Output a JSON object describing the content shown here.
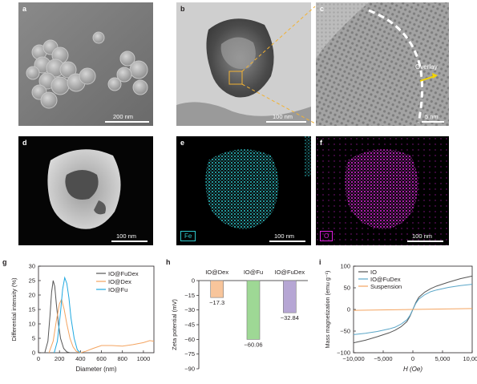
{
  "figure": {
    "panels": {
      "a": {
        "label": "a",
        "scalebar": "200 nm"
      },
      "b": {
        "label": "b",
        "scalebar": "100 nm"
      },
      "c": {
        "label": "c",
        "scalebar": "5 nm",
        "annotation": "Overlay"
      },
      "d": {
        "label": "d",
        "scalebar": "100 nm"
      },
      "e": {
        "label": "e",
        "scalebar": "100 nm",
        "element": "Fe"
      },
      "f": {
        "label": "f",
        "scalebar": "100 nm",
        "element": "O"
      },
      "g": {
        "label": "g"
      },
      "h": {
        "label": "h"
      },
      "i": {
        "label": "i"
      }
    },
    "colors": {
      "fe_map": "#29c4c8",
      "o_map": "#e020e0",
      "fe_box": "#2ec7cc",
      "o_box": "#e01ee0",
      "dash_yellow": "#f2b233"
    }
  },
  "chart_data": [
    {
      "id": "g",
      "type": "line",
      "xlabel": "Diameter (nm)",
      "ylabel": "Differential intensity (%)",
      "xlim": [
        0,
        1100
      ],
      "ylim": [
        0,
        30
      ],
      "xticks": [
        0,
        200,
        400,
        600,
        800,
        1000
      ],
      "yticks": [
        0,
        5,
        10,
        15,
        20,
        25,
        30
      ],
      "legend_position": "top-right",
      "series": [
        {
          "name": "IO@FuDex",
          "color": "#555555",
          "points": [
            [
              60,
              0
            ],
            [
              90,
              4
            ],
            [
              110,
              13
            ],
            [
              125,
              21
            ],
            [
              140,
              25
            ],
            [
              155,
              23
            ],
            [
              170,
              17
            ],
            [
              190,
              10
            ],
            [
              210,
              5
            ],
            [
              240,
              1.5
            ],
            [
              270,
              0.3
            ],
            [
              300,
              0
            ]
          ]
        },
        {
          "name": "IO@Dex",
          "color": "#f4a460",
          "points": [
            [
              100,
              0
            ],
            [
              140,
              4
            ],
            [
              170,
              11
            ],
            [
              200,
              17
            ],
            [
              220,
              18.5
            ],
            [
              245,
              15
            ],
            [
              270,
              10
            ],
            [
              300,
              5
            ],
            [
              330,
              2
            ],
            [
              360,
              0.5
            ],
            [
              400,
              0
            ],
            [
              450,
              0.5
            ],
            [
              520,
              1.5
            ],
            [
              600,
              2.5
            ],
            [
              700,
              2.5
            ],
            [
              800,
              2.3
            ],
            [
              900,
              2.8
            ],
            [
              1000,
              3.5
            ],
            [
              1060,
              4.2
            ],
            [
              1100,
              4
            ]
          ]
        },
        {
          "name": "IO@Fu",
          "color": "#1fa8e0",
          "points": [
            [
              150,
              0
            ],
            [
              180,
              4
            ],
            [
              210,
              14
            ],
            [
              230,
              22
            ],
            [
              250,
              26
            ],
            [
              270,
              24
            ],
            [
              290,
              19
            ],
            [
              310,
              12
            ],
            [
              340,
              5
            ],
            [
              370,
              1
            ],
            [
              400,
              0
            ]
          ]
        }
      ]
    },
    {
      "id": "h",
      "type": "bar",
      "ylabel": "Zeta potential (mV)",
      "ylim": [
        -90,
        0
      ],
      "yticks": [
        0,
        -15,
        -30,
        -45,
        -60,
        -75,
        -90
      ],
      "categories": [
        "IO@Dex",
        "IO@Fu",
        "IO@FuDex"
      ],
      "values": [
        -17.3,
        -60.06,
        -32.84
      ],
      "value_labels": [
        "−17.3",
        "−60.06",
        "−32.84"
      ],
      "colors": [
        "#f8c59b",
        "#9ed895",
        "#b6a6d4"
      ]
    },
    {
      "id": "i",
      "type": "line",
      "xlabel": "H (Oe)",
      "ylabel": "Mass magnetization (emu g⁻¹)",
      "xlim": [
        -10000,
        10000
      ],
      "ylim": [
        -100,
        100
      ],
      "xticks": [
        -10000,
        -5000,
        0,
        5000,
        10000
      ],
      "xtick_labels": [
        "−10,000",
        "−5,000",
        "0",
        "5,000",
        "10,000"
      ],
      "yticks": [
        -100,
        -50,
        0,
        50,
        100
      ],
      "ytick_labels": [
        "−100",
        "−50",
        "0",
        "50",
        "100"
      ],
      "legend_position": "top-left",
      "series": [
        {
          "name": "IO",
          "color": "#555555",
          "points": [
            [
              -10000,
              -77
            ],
            [
              -8000,
              -71
            ],
            [
              -6000,
              -63
            ],
            [
              -4000,
              -54
            ],
            [
              -3000,
              -48
            ],
            [
              -2000,
              -40
            ],
            [
              -1000,
              -28
            ],
            [
              -500,
              -16
            ],
            [
              0,
              0
            ],
            [
              500,
              16
            ],
            [
              1000,
              28
            ],
            [
              2000,
              40
            ],
            [
              3000,
              48
            ],
            [
              4000,
              54
            ],
            [
              6000,
              63
            ],
            [
              8000,
              71
            ],
            [
              10000,
              77
            ]
          ]
        },
        {
          "name": "IO@FuDex",
          "color": "#5aa6c8",
          "points": [
            [
              -10000,
              -58
            ],
            [
              -8000,
              -55
            ],
            [
              -6000,
              -51
            ],
            [
              -4000,
              -45
            ],
            [
              -3000,
              -41
            ],
            [
              -2000,
              -34
            ],
            [
              -1000,
              -24
            ],
            [
              -500,
              -14
            ],
            [
              0,
              0
            ],
            [
              500,
              14
            ],
            [
              1000,
              24
            ],
            [
              2000,
              34
            ],
            [
              3000,
              41
            ],
            [
              4000,
              45
            ],
            [
              6000,
              51
            ],
            [
              8000,
              55
            ],
            [
              10000,
              58
            ]
          ]
        },
        {
          "name": "Suspension",
          "color": "#f4a460",
          "points": [
            [
              -10000,
              -2
            ],
            [
              0,
              0
            ],
            [
              10000,
              2
            ]
          ]
        }
      ]
    }
  ]
}
